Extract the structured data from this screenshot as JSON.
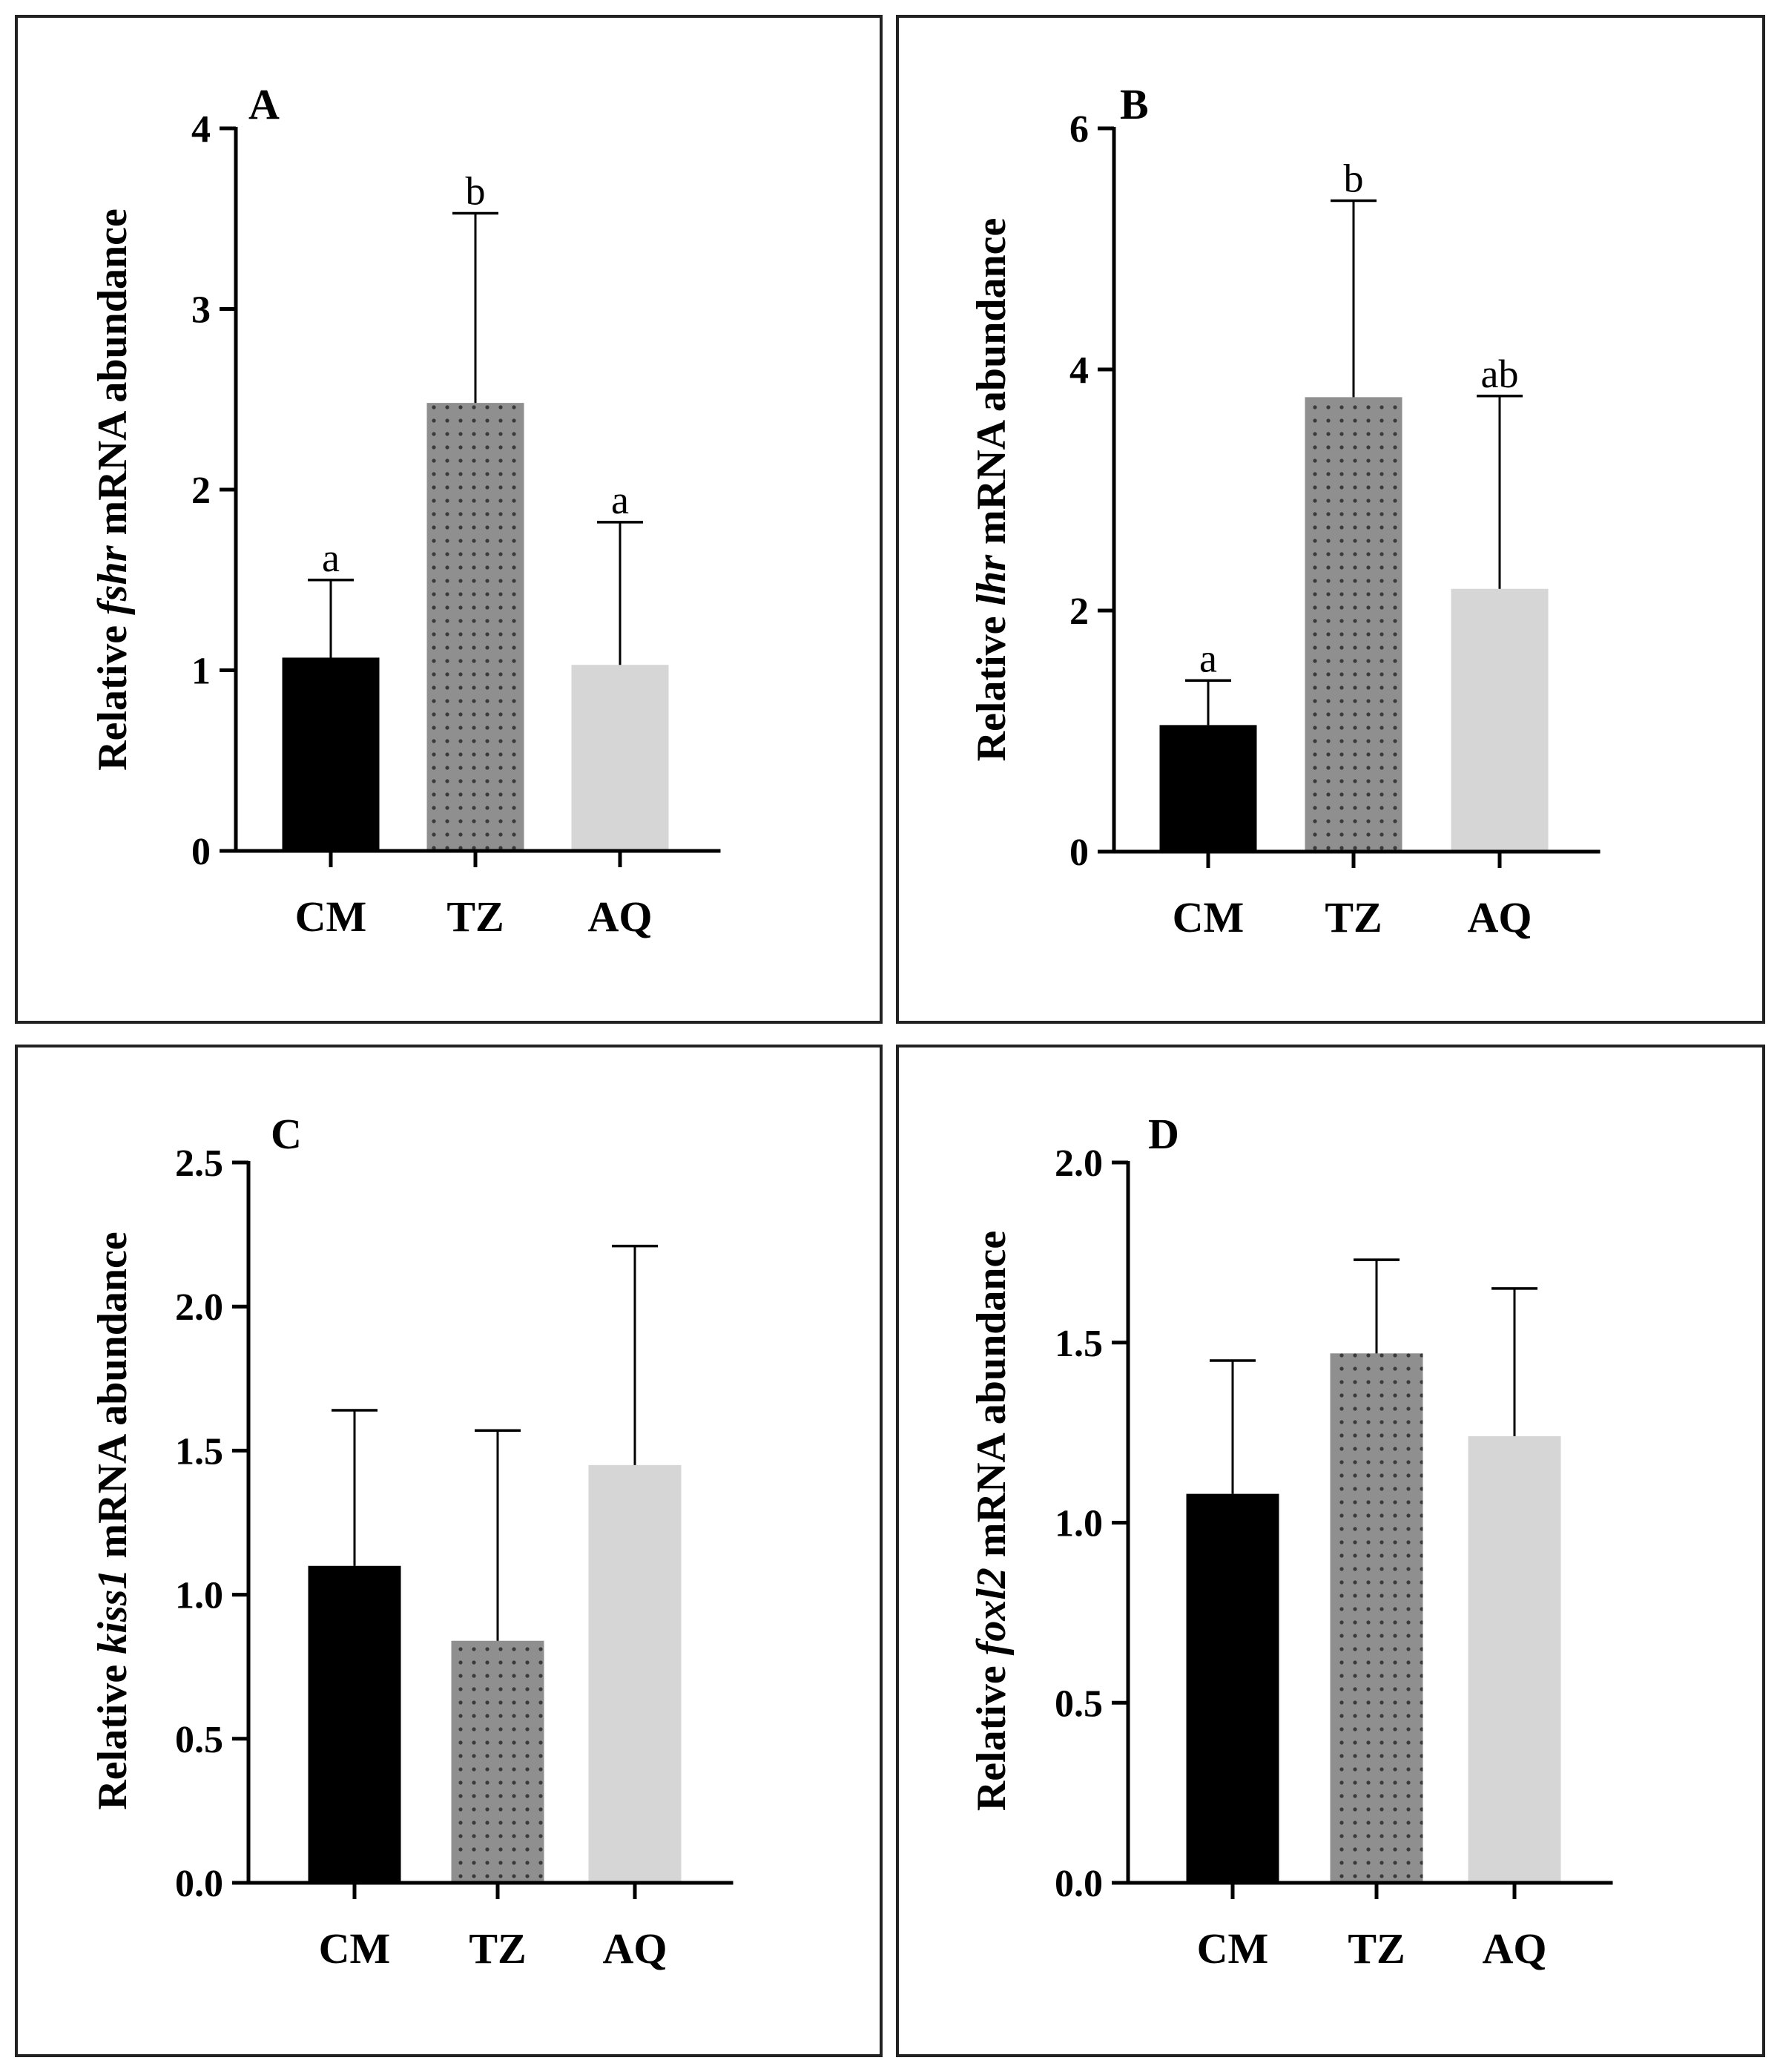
{
  "colors": {
    "CM": "#000000",
    "TZ": "#8f8f8f",
    "AQ": "#d6d6d6",
    "axis": "#000000",
    "frame": "#222222"
  },
  "chart_data": [
    {
      "type": "bar",
      "panel": "A",
      "ylabel_prefix": "Relative ",
      "gene": "fshr",
      "ylabel_suffix": " mRNA abundance",
      "ylim": [
        0,
        4
      ],
      "yticks": [
        0,
        1,
        2,
        3,
        4
      ],
      "ytick_labels": [
        "0",
        "1",
        "2",
        "3",
        "4"
      ],
      "categories": [
        "CM",
        "TZ",
        "AQ"
      ],
      "values": [
        1.07,
        2.48,
        1.03
      ],
      "errors": [
        0.43,
        1.05,
        0.79
      ],
      "significance": [
        "a",
        "b",
        "a"
      ]
    },
    {
      "type": "bar",
      "panel": "B",
      "ylabel_prefix": "Relative ",
      "gene": "lhr",
      "ylabel_suffix": " mRNA abundance",
      "ylim": [
        0,
        6
      ],
      "yticks": [
        0,
        2,
        4,
        6
      ],
      "ytick_labels": [
        "0",
        "2",
        "4",
        "6"
      ],
      "categories": [
        "CM",
        "TZ",
        "AQ"
      ],
      "values": [
        1.05,
        3.77,
        2.18
      ],
      "errors": [
        0.37,
        1.63,
        1.6
      ],
      "significance": [
        "a",
        "b",
        "ab"
      ]
    },
    {
      "type": "bar",
      "panel": "C",
      "ylabel_prefix": "Relative ",
      "gene": "kiss1",
      "ylabel_suffix": " mRNA abundance",
      "ylim": [
        0,
        2.5
      ],
      "yticks": [
        0,
        0.5,
        1.0,
        1.5,
        2.0,
        2.5
      ],
      "ytick_labels": [
        "0.0",
        "0.5",
        "1.0",
        "1.5",
        "2.0",
        "2.5"
      ],
      "categories": [
        "CM",
        "TZ",
        "AQ"
      ],
      "values": [
        1.1,
        0.84,
        1.45
      ],
      "errors": [
        0.54,
        0.73,
        0.76
      ],
      "significance": [
        "",
        "",
        ""
      ]
    },
    {
      "type": "bar",
      "panel": "D",
      "ylabel_prefix": "Relative ",
      "gene": "foxl2",
      "ylabel_suffix": " mRNA abundance",
      "ylim": [
        0,
        2.0
      ],
      "yticks": [
        0,
        0.5,
        1.0,
        1.5,
        2.0
      ],
      "ytick_labels": [
        "0.0",
        "0.5",
        "1.0",
        "1.5",
        "2.0"
      ],
      "categories": [
        "CM",
        "TZ",
        "AQ"
      ],
      "values": [
        1.08,
        1.47,
        1.24
      ],
      "errors": [
        0.37,
        0.26,
        0.41
      ],
      "significance": [
        "",
        "",
        ""
      ]
    }
  ]
}
